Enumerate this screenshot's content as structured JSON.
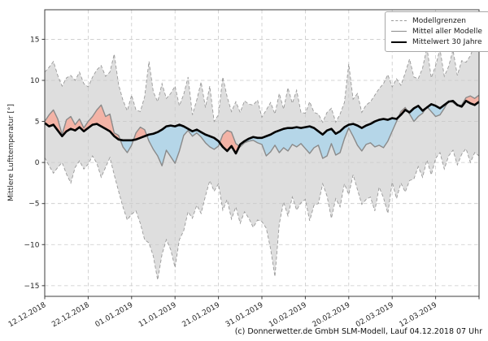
{
  "caption": "(c) Donnerwetter.de GmbH SLM-Modell, Lauf 04.12.2018 07 Uhr",
  "chart_data": {
    "type": "line",
    "title": "",
    "xlabel": "",
    "ylabel": "Mittlere Lufttemperatur [°]",
    "x_unit": "days since 12.12.2018",
    "xlim_days": [
      0,
      100
    ],
    "ylim": [
      -16.3,
      18.6
    ],
    "grid": true,
    "y_ticks": [
      15,
      10,
      5,
      0,
      -5,
      -10,
      -15
    ],
    "x_ticks": [
      {
        "day": 0,
        "label": "12.12.2018"
      },
      {
        "day": 10,
        "label": "22.12.2018"
      },
      {
        "day": 20,
        "label": "01.01.2019"
      },
      {
        "day": 30,
        "label": "11.01.2019"
      },
      {
        "day": 40,
        "label": "21.01.2019"
      },
      {
        "day": 50,
        "label": "31.01.2019"
      },
      {
        "day": 60,
        "label": "10.02.2019"
      },
      {
        "day": 70,
        "label": "20.02.2019"
      },
      {
        "day": 80,
        "label": "02.03.2019"
      },
      {
        "day": 90,
        "label": "12.03.2019"
      },
      {
        "day": 100,
        "label": ""
      }
    ],
    "legend": {
      "position": "upper-right",
      "entries": [
        {
          "label": "Modellgrenzen",
          "style": "dashed-gray"
        },
        {
          "label": "Mittel aller Modelle",
          "style": "solid-gray"
        },
        {
          "label": "Mittelwert 30 Jahre",
          "style": "thick-black"
        }
      ]
    },
    "fills": {
      "envelope": "#dedede",
      "above_mean": "#f3b3a6",
      "below_mean": "#b5d6e8"
    },
    "colors": {
      "bounds": "#999999",
      "model_mean": "#8a8a8a",
      "mean_30y": "#000000",
      "grid": "#c9c9c9",
      "spine": "#3c3c3c",
      "text": "#262626"
    },
    "series": [
      {
        "name": "Modellgrenzen (obere Grenze)",
        "role": "upper",
        "values": [
          11.0,
          11.6,
          12.3,
          10.6,
          9.3,
          10.3,
          10.6,
          10.0,
          11.0,
          9.6,
          9.2,
          10.4,
          11.3,
          11.8,
          10.5,
          11.0,
          13.2,
          9.5,
          7.6,
          6.3,
          8.2,
          6.4,
          6.2,
          8.0,
          12.3,
          8.6,
          7.4,
          9.6,
          7.8,
          8.4,
          9.3,
          6.9,
          8.3,
          10.4,
          5.8,
          7.6,
          9.8,
          6.7,
          9.3,
          5.0,
          5.8,
          10.4,
          8.0,
          6.2,
          7.4,
          6.1,
          7.5,
          7.1,
          7.0,
          7.6,
          5.5,
          6.4,
          7.3,
          5.9,
          8.4,
          6.5,
          9.1,
          7.2,
          8.8,
          6.1,
          6.0,
          7.4,
          6.1,
          5.9,
          4.9,
          6.1,
          6.6,
          4.9,
          5.9,
          7.3,
          12.0,
          7.7,
          8.4,
          6.1,
          7.0,
          7.4,
          8.2,
          9.0,
          9.6,
          10.7,
          9.2,
          10.2,
          9.4,
          10.9,
          12.6,
          10.4,
          10.2,
          11.5,
          14.0,
          10.3,
          11.8,
          13.8,
          10.5,
          11.7,
          13.7,
          10.6,
          12.4,
          12.2,
          13.0,
          14.4,
          13.8
        ]
      },
      {
        "name": "Modellgrenzen (untere Grenze)",
        "role": "lower",
        "values": [
          0.6,
          -0.4,
          -1.3,
          -0.6,
          0.0,
          -1.4,
          -2.5,
          -0.6,
          0.2,
          -0.8,
          -0.2,
          0.8,
          -0.1,
          -1.8,
          -0.6,
          0.6,
          -1.5,
          -3.5,
          -5.4,
          -7.0,
          -6.3,
          -5.9,
          -7.4,
          -9.4,
          -9.8,
          -11.4,
          -14.3,
          -11.2,
          -9.4,
          -10.6,
          -12.8,
          -9.4,
          -8.3,
          -6.0,
          -6.8,
          -5.2,
          -6.2,
          -4.1,
          -2.2,
          -3.5,
          -2.6,
          -5.8,
          -4.5,
          -6.9,
          -5.4,
          -7.4,
          -6.0,
          -6.8,
          -7.9,
          -7.0,
          -7.2,
          -8.0,
          -10.5,
          -13.9,
          -7.5,
          -4.8,
          -6.5,
          -4.2,
          -5.8,
          -4.9,
          -4.5,
          -7.1,
          -5.2,
          -5.0,
          -2.6,
          -4.1,
          -6.8,
          -4.4,
          -5.4,
          -2.6,
          -3.9,
          -1.5,
          -3.3,
          -5.1,
          -4.5,
          -4.2,
          -5.9,
          -3.0,
          -4.3,
          -6.2,
          -2.4,
          -4.4,
          -2.5,
          -3.6,
          -2.2,
          -2.0,
          -0.5,
          -1.8,
          0.3,
          -1.5,
          0.5,
          1.2,
          -0.8,
          0.8,
          1.5,
          -0.3,
          1.0,
          1.7,
          0.0,
          1.2,
          0.8
        ]
      },
      {
        "name": "Mittel aller Modelle",
        "role": "model_mean",
        "values": [
          5.0,
          5.8,
          6.4,
          5.3,
          3.4,
          5.2,
          5.6,
          4.6,
          5.3,
          4.2,
          5.0,
          5.6,
          6.4,
          7.0,
          5.6,
          5.9,
          3.6,
          3.3,
          1.9,
          1.2,
          2.1,
          3.6,
          4.3,
          4.0,
          2.6,
          1.6,
          0.8,
          -0.4,
          1.5,
          0.7,
          -0.1,
          1.4,
          3.3,
          3.9,
          3.2,
          3.6,
          3.1,
          2.4,
          1.9,
          1.6,
          2.0,
          3.4,
          3.9,
          3.7,
          2.3,
          1.9,
          2.4,
          2.6,
          2.7,
          2.4,
          2.2,
          0.8,
          1.3,
          2.1,
          1.2,
          1.8,
          1.4,
          2.2,
          1.9,
          2.3,
          1.7,
          1.1,
          1.8,
          2.1,
          0.5,
          0.8,
          2.3,
          0.9,
          1.2,
          2.9,
          4.2,
          3.2,
          2.1,
          1.4,
          2.2,
          2.4,
          1.9,
          2.1,
          1.8,
          2.6,
          3.8,
          5.0,
          6.2,
          6.7,
          5.9,
          5.0,
          5.6,
          6.0,
          6.8,
          6.2,
          5.6,
          5.8,
          6.6,
          7.5,
          7.3,
          6.9,
          7.0,
          7.9,
          8.1,
          7.8,
          8.2
        ]
      },
      {
        "name": "Mittelwert 30 Jahre",
        "role": "mean_30y",
        "values": [
          4.8,
          4.4,
          4.6,
          3.9,
          3.2,
          3.8,
          4.1,
          3.9,
          4.3,
          3.8,
          4.2,
          4.6,
          4.7,
          4.4,
          4.1,
          3.8,
          3.2,
          2.8,
          2.7,
          2.7,
          2.7,
          2.8,
          3.0,
          3.2,
          3.4,
          3.5,
          3.7,
          4.0,
          4.4,
          4.5,
          4.4,
          4.6,
          4.4,
          4.1,
          3.8,
          4.0,
          3.7,
          3.4,
          3.2,
          3.0,
          2.6,
          1.9,
          1.4,
          2.0,
          1.1,
          2.2,
          2.6,
          2.9,
          3.1,
          3.0,
          3.0,
          3.2,
          3.4,
          3.7,
          3.9,
          4.1,
          4.2,
          4.2,
          4.3,
          4.2,
          4.3,
          4.4,
          4.2,
          3.8,
          3.4,
          3.9,
          4.1,
          3.5,
          3.8,
          4.3,
          4.6,
          4.7,
          4.5,
          4.2,
          4.5,
          4.7,
          5.0,
          5.2,
          5.3,
          5.2,
          5.4,
          5.3,
          5.8,
          6.4,
          6.1,
          6.6,
          6.9,
          6.3,
          6.7,
          7.1,
          6.9,
          6.6,
          7.0,
          7.4,
          7.5,
          7.0,
          6.8,
          7.5,
          7.2,
          7.0,
          7.4
        ]
      }
    ]
  }
}
